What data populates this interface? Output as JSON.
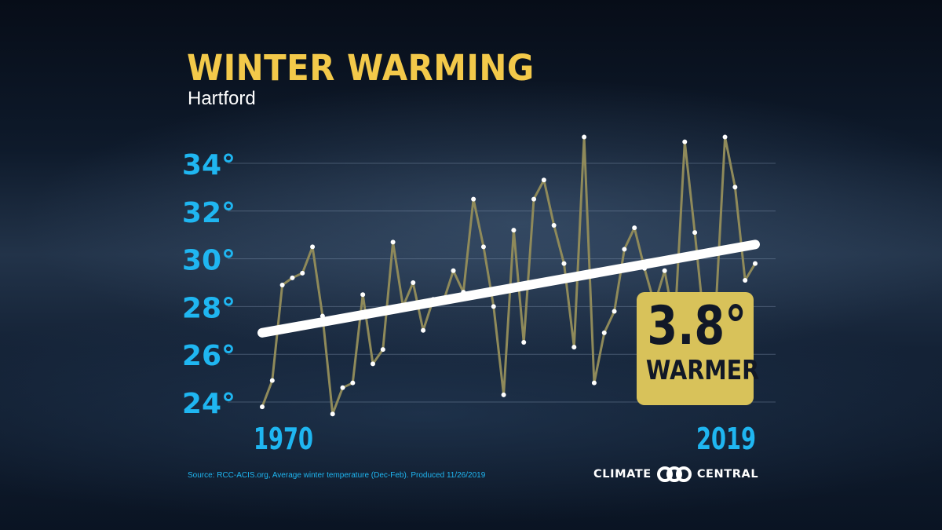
{
  "colors": {
    "title": "#f3c94a",
    "axis_labels": "#1fb6f1",
    "series_line": "#8f8a5a",
    "points": "#ffffff",
    "trend": "#ffffff",
    "badge_bg": "#d8c25a",
    "badge_text": "#111827"
  },
  "header": {
    "title": "WINTER WARMING",
    "subtitle": "Hartford"
  },
  "badge": {
    "value": "3.8°",
    "label": "WARMER"
  },
  "footer": {
    "source": "Source: RCC-ACIS.org, Average winter temperature (Dec-Feb). Produced 11/26/2019",
    "logo_left": "CLIMATE",
    "logo_right": "CENTRAL",
    "logo_icon": "linked-circles-icon"
  },
  "chart_data": {
    "type": "line",
    "title": "WINTER WARMING",
    "subtitle": "Hartford",
    "x_tick_labels": [
      "1970",
      "2019"
    ],
    "y_ticks": [
      24,
      26,
      28,
      30,
      32,
      34
    ],
    "y_tick_labels": [
      "24°",
      "26°",
      "28°",
      "30°",
      "32°",
      "34°"
    ],
    "xlim": [
      1970,
      2019
    ],
    "ylim": [
      23.5,
      35.3
    ],
    "grid": true,
    "series": [
      {
        "x": [
          1970,
          1971,
          1972,
          1973,
          1974,
          1975,
          1976,
          1977,
          1978,
          1979,
          1980,
          1981,
          1982,
          1983,
          1984,
          1985,
          1986,
          1987,
          1988,
          1989,
          1990,
          1991,
          1992,
          1993,
          1994,
          1995,
          1996,
          1997,
          1998,
          1999,
          2000,
          2001,
          2002,
          2003,
          2004,
          2005,
          2006,
          2007,
          2008,
          2009,
          2010,
          2011,
          2012,
          2013,
          2014,
          2015,
          2016,
          2017,
          2018,
          2019
        ],
        "values": [
          23.8,
          24.9,
          28.9,
          29.2,
          29.4,
          30.5,
          27.6,
          23.5,
          24.6,
          24.8,
          28.5,
          25.6,
          26.2,
          30.7,
          28.0,
          29.0,
          27.0,
          28.3,
          28.2,
          29.5,
          28.6,
          32.5,
          30.5,
          28.0,
          24.3,
          31.2,
          26.5,
          32.5,
          33.3,
          31.4,
          29.8,
          26.3,
          35.1,
          24.8,
          26.9,
          27.8,
          30.4,
          31.3,
          29.6,
          28.1,
          29.5,
          27.2,
          34.9,
          31.1,
          27.0,
          27.2,
          35.1,
          33.0,
          29.1,
          29.8
        ]
      },
      {
        "x": [
          1970,
          2019
        ],
        "values": [
          26.9,
          30.6
        ]
      }
    ]
  }
}
